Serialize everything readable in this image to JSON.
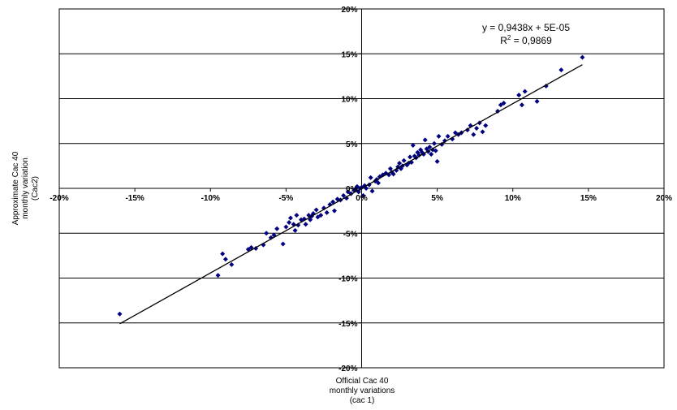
{
  "chart_data": {
    "type": "scatter",
    "xlabel_lines": [
      "Official Cac 40",
      "monthly variations",
      "(cac 1)"
    ],
    "ylabel_lines": [
      "Approximate Cac 40",
      "monthly variation",
      "(Cac2)"
    ],
    "x_ticks": [
      "-20%",
      "-15%",
      "-10%",
      "-5%",
      "0%",
      "5%",
      "10%",
      "15%",
      "20%"
    ],
    "y_ticks": [
      "20%",
      "15%",
      "10%",
      "5%",
      "0%",
      "-5%",
      "-10%",
      "-15%",
      "-20%"
    ],
    "xlim": [
      -0.2,
      0.2
    ],
    "ylim": [
      -0.2,
      0.2
    ],
    "grid": "horizontal",
    "marker_color": "#000080",
    "trendline": {
      "equation": "y = 0,9438x + 5E-05",
      "r2_prefix": "R",
      "r2_sup": "2",
      "r2_value": " = 0,9869",
      "slope": 0.9438,
      "intercept": 5e-05,
      "x_range": [
        -0.16,
        0.146
      ]
    },
    "points": [
      [
        -0.16,
        -0.14
      ],
      [
        -0.095,
        -0.097
      ],
      [
        -0.092,
        -0.073
      ],
      [
        -0.09,
        -0.079
      ],
      [
        -0.086,
        -0.085
      ],
      [
        -0.075,
        -0.068
      ],
      [
        -0.073,
        -0.066
      ],
      [
        -0.07,
        -0.067
      ],
      [
        -0.065,
        -0.063
      ],
      [
        -0.063,
        -0.05
      ],
      [
        -0.06,
        -0.055
      ],
      [
        -0.058,
        -0.052
      ],
      [
        -0.056,
        -0.045
      ],
      [
        -0.052,
        -0.062
      ],
      [
        -0.05,
        -0.043
      ],
      [
        -0.048,
        -0.038
      ],
      [
        -0.047,
        -0.033
      ],
      [
        -0.045,
        -0.04
      ],
      [
        -0.044,
        -0.047
      ],
      [
        -0.043,
        -0.03
      ],
      [
        -0.042,
        -0.041
      ],
      [
        -0.04,
        -0.035
      ],
      [
        -0.038,
        -0.034
      ],
      [
        -0.037,
        -0.04
      ],
      [
        -0.035,
        -0.03
      ],
      [
        -0.034,
        -0.035
      ],
      [
        -0.033,
        -0.031
      ],
      [
        -0.032,
        -0.028
      ],
      [
        -0.03,
        -0.024
      ],
      [
        -0.029,
        -0.032
      ],
      [
        -0.027,
        -0.03
      ],
      [
        -0.025,
        -0.022
      ],
      [
        -0.023,
        -0.027
      ],
      [
        -0.021,
        -0.018
      ],
      [
        -0.019,
        -0.015
      ],
      [
        -0.018,
        -0.025
      ],
      [
        -0.016,
        -0.012
      ],
      [
        -0.014,
        -0.013
      ],
      [
        -0.012,
        -0.008
      ],
      [
        -0.01,
        -0.011
      ],
      [
        -0.009,
        -0.004
      ],
      [
        -0.007,
        -0.006
      ],
      [
        -0.005,
        -0.002
      ],
      [
        -0.004,
        -0.001
      ],
      [
        -0.003,
        0.002
      ],
      [
        -0.002,
        -0.004
      ],
      [
        -0.001,
        0.0
      ],
      [
        0.0,
        0.001
      ],
      [
        0.001,
        -0.008
      ],
      [
        0.002,
        0.003
      ],
      [
        0.003,
        0.0
      ],
      [
        0.005,
        0.004
      ],
      [
        0.006,
        0.012
      ],
      [
        0.007,
        -0.003
      ],
      [
        0.009,
        0.008
      ],
      [
        0.01,
        0.01
      ],
      [
        0.011,
        0.006
      ],
      [
        0.012,
        0.013
      ],
      [
        0.014,
        0.015
      ],
      [
        0.016,
        0.017
      ],
      [
        0.018,
        0.015
      ],
      [
        0.019,
        0.022
      ],
      [
        0.02,
        0.018
      ],
      [
        0.021,
        0.016
      ],
      [
        0.023,
        0.02
      ],
      [
        0.024,
        0.024
      ],
      [
        0.025,
        0.028
      ],
      [
        0.026,
        0.022
      ],
      [
        0.027,
        0.025
      ],
      [
        0.028,
        0.031
      ],
      [
        0.03,
        0.026
      ],
      [
        0.031,
        0.028
      ],
      [
        0.032,
        0.035
      ],
      [
        0.033,
        0.029
      ],
      [
        0.034,
        0.048
      ],
      [
        0.035,
        0.036
      ],
      [
        0.036,
        0.034
      ],
      [
        0.037,
        0.04
      ],
      [
        0.038,
        0.037
      ],
      [
        0.039,
        0.043
      ],
      [
        0.04,
        0.04
      ],
      [
        0.041,
        0.038
      ],
      [
        0.042,
        0.054
      ],
      [
        0.043,
        0.044
      ],
      [
        0.044,
        0.041
      ],
      [
        0.045,
        0.046
      ],
      [
        0.046,
        0.038
      ],
      [
        0.047,
        0.043
      ],
      [
        0.048,
        0.05
      ],
      [
        0.049,
        0.042
      ],
      [
        0.05,
        0.03
      ],
      [
        0.051,
        0.058
      ],
      [
        0.053,
        0.049
      ],
      [
        0.055,
        0.053
      ],
      [
        0.057,
        0.058
      ],
      [
        0.06,
        0.055
      ],
      [
        0.062,
        0.062
      ],
      [
        0.064,
        0.06
      ],
      [
        0.066,
        0.062
      ],
      [
        0.07,
        0.065
      ],
      [
        0.072,
        0.07
      ],
      [
        0.074,
        0.06
      ],
      [
        0.076,
        0.067
      ],
      [
        0.078,
        0.073
      ],
      [
        0.08,
        0.063
      ],
      [
        0.082,
        0.07
      ],
      [
        0.09,
        0.086
      ],
      [
        0.092,
        0.093
      ],
      [
        0.094,
        0.095
      ],
      [
        0.104,
        0.104
      ],
      [
        0.106,
        0.093
      ],
      [
        0.108,
        0.108
      ],
      [
        0.116,
        0.097
      ],
      [
        0.122,
        0.114
      ],
      [
        0.132,
        0.132
      ],
      [
        0.146,
        0.146
      ]
    ]
  }
}
